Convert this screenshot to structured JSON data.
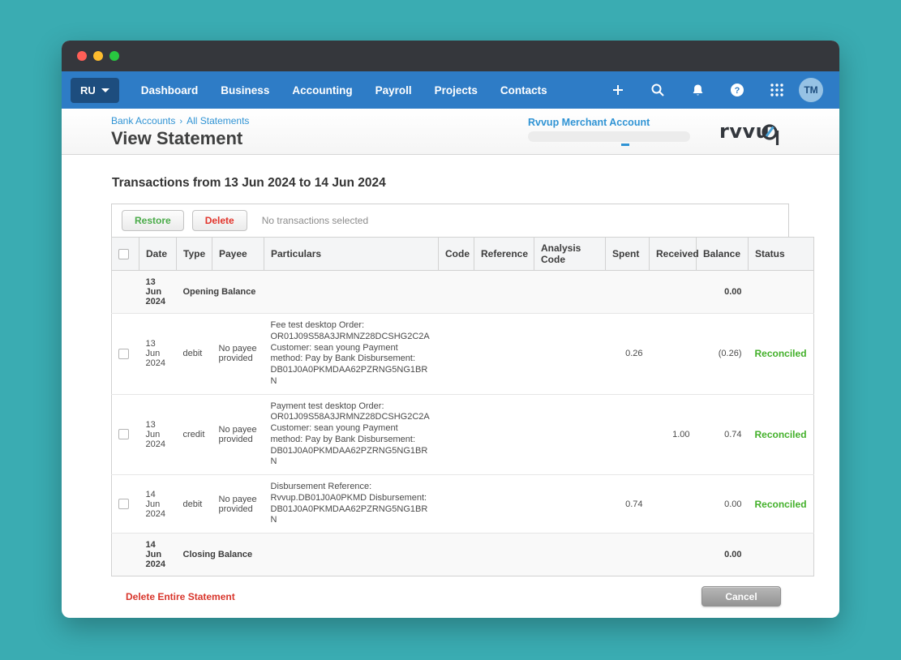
{
  "navbar": {
    "org_short": "RU",
    "items": [
      "Dashboard",
      "Business",
      "Accounting",
      "Payroll",
      "Projects",
      "Contacts"
    ],
    "avatar_initials": "TM"
  },
  "header": {
    "breadcrumb": [
      "Bank Accounts",
      "All Statements"
    ],
    "title": "View Statement",
    "account_link": "Rvvup Merchant Account",
    "logo_text": "rvvu"
  },
  "main": {
    "heading": "Transactions from 13 Jun 2024 to 14 Jun 2024",
    "toolbar": {
      "restore_label": "Restore",
      "delete_label": "Delete",
      "status_text": "No transactions selected"
    },
    "table": {
      "columns": [
        "Date",
        "Type",
        "Payee",
        "Particulars",
        "Code",
        "Reference",
        "Analysis Code",
        "Spent",
        "Received",
        "Balance",
        "Status"
      ],
      "rows": [
        {
          "kind": "balance",
          "date": "13 Jun 2024",
          "label": "Opening Balance",
          "balance": "0.00"
        },
        {
          "kind": "txn",
          "date": "13 Jun 2024",
          "type": "debit",
          "payee": "No payee provided",
          "particulars": "Fee test desktop Order: OR01J09S58A3JRMNZ28DCSHG2C2A Customer: sean young Payment method: Pay by Bank Disbursement: DB01J0A0PKMDAA62PZRNG5NG1BRN",
          "code": "",
          "reference": "",
          "analysis_code": "",
          "spent": "0.26",
          "received": "",
          "balance": "(0.26)",
          "status": "Reconciled"
        },
        {
          "kind": "txn",
          "date": "13 Jun 2024",
          "type": "credit",
          "payee": "No payee provided",
          "particulars": "Payment test desktop Order: OR01J09S58A3JRMNZ28DCSHG2C2A Customer: sean young Payment method: Pay by Bank Disbursement: DB01J0A0PKMDAA62PZRNG5NG1BRN",
          "code": "",
          "reference": "",
          "analysis_code": "",
          "spent": "",
          "received": "1.00",
          "balance": "0.74",
          "status": "Reconciled"
        },
        {
          "kind": "txn",
          "date": "14 Jun 2024",
          "type": "debit",
          "payee": "No payee provided",
          "particulars": "Disbursement Reference: Rvvup.DB01J0A0PKMD Disbursement: DB01J0A0PKMDAA62PZRNG5NG1BRN",
          "code": "",
          "reference": "",
          "analysis_code": "",
          "spent": "0.74",
          "received": "",
          "balance": "0.00",
          "status": "Reconciled"
        },
        {
          "kind": "balance",
          "date": "14 Jun 2024",
          "label": "Closing Balance",
          "balance": "0.00"
        }
      ]
    },
    "footer": {
      "delete_statement_label": "Delete Entire Statement",
      "cancel_label": "Cancel"
    }
  },
  "colors": {
    "background_teal": "#3aacb2",
    "navbar_blue": "#2e7cc6",
    "org_button_navy": "#1d4d7e",
    "link_blue": "#2f93d4",
    "reconciled_green": "#43b02a",
    "restore_green": "#4aab49",
    "delete_red": "#e2342b",
    "traffic_red": "#ff5f57",
    "traffic_yellow": "#febc2e",
    "traffic_green": "#28c840"
  }
}
